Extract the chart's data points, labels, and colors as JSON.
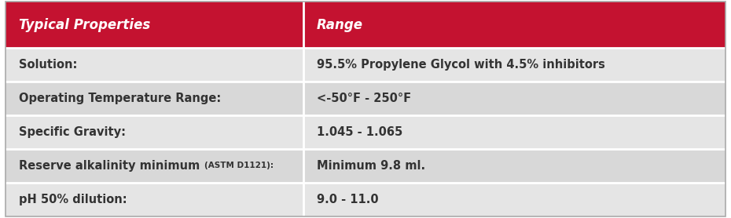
{
  "header": [
    "Typical Properties",
    "Range"
  ],
  "rows": [
    [
      "Solution:",
      "95.5% Propylene Glycol with 4.5% inhibitors"
    ],
    [
      "Operating Temperature Range:",
      "<-50°F - 250°F"
    ],
    [
      "Specific Gravity:",
      "1.045 - 1.065"
    ],
    [
      "Reserve alkalinity minimum",
      "(ASTM D1121):",
      "Minimum 9.8 ml."
    ],
    [
      "pH 50% dilution:",
      "9.0 - 11.0"
    ]
  ],
  "header_bg_color": "#C41230",
  "header_text_color": "#FFFFFF",
  "row_bg_color": "#E5E5E5",
  "row_bg_color_alt": "#D8D8D8",
  "text_color": "#333333",
  "border_color": "#FFFFFF",
  "col_split": 0.415,
  "outer_border_color": "#AAAAAA",
  "header_font_size": 12,
  "row_font_size": 10.5,
  "small_font_size": 7.5,
  "fig_width": 9.3,
  "fig_height": 2.78,
  "dpi": 100
}
